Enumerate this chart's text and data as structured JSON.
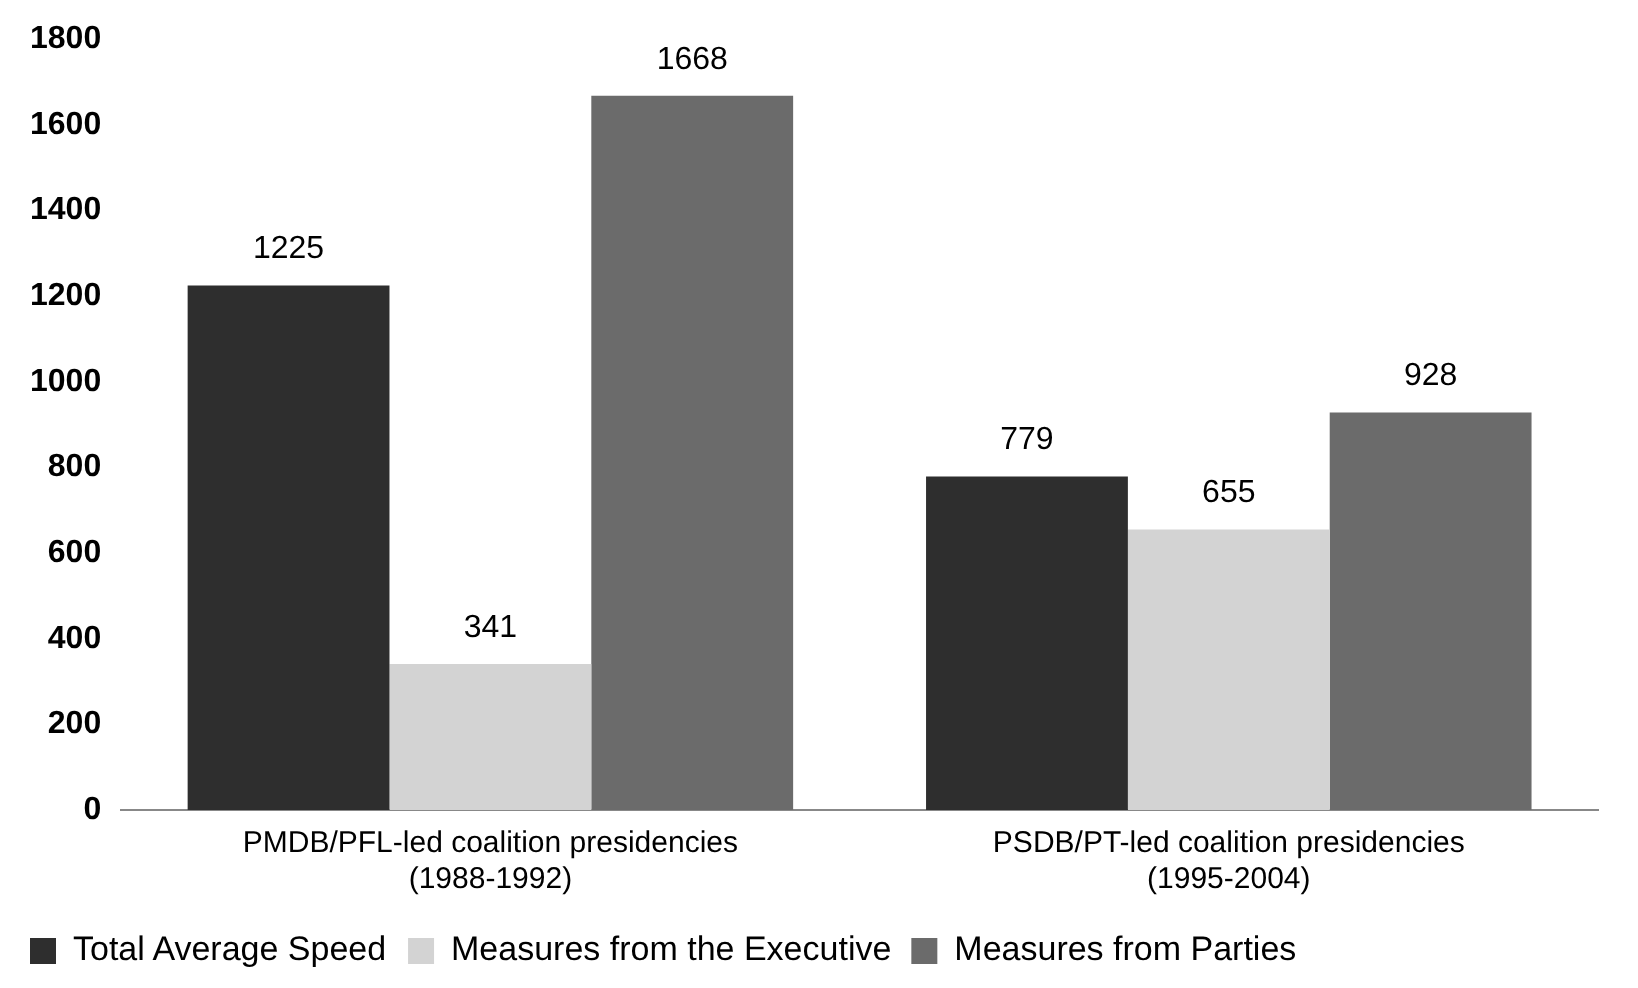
{
  "chart_data": {
    "type": "bar",
    "categories": [
      "PMDB/PFL-led coalition presidencies (1988-1992)",
      "PSDB/PT-led coalition presidencies (1995-2004)"
    ],
    "series": [
      {
        "name": "Total Average Speed",
        "color": "#2e2e2e",
        "values": [
          1225,
          779
        ]
      },
      {
        "name": "Measures from the Executive",
        "color": "#d3d3d3",
        "values": [
          341,
          655
        ]
      },
      {
        "name": "Measures from Parties",
        "color": "#6b6b6b",
        "values": [
          1668,
          928
        ]
      }
    ],
    "ylim": [
      0,
      1800
    ],
    "yticks": [
      0,
      200,
      400,
      600,
      800,
      1000,
      1200,
      1400,
      1600,
      1800
    ],
    "grid": false,
    "legend": "bottom",
    "data_labels": true
  }
}
